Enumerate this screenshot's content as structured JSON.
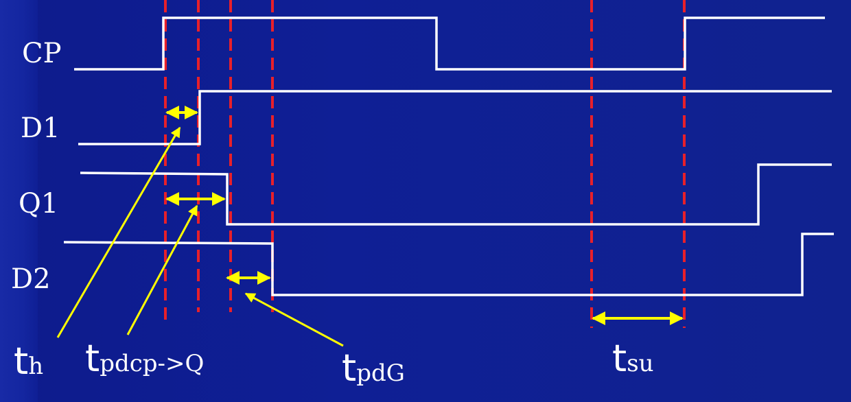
{
  "colors": {
    "background": "#0f1f95",
    "waveform": "#ffffff",
    "guide_lines": "#e8202a",
    "arrows": "#ffff00"
  },
  "signals": {
    "cp": "CP",
    "d1": "D1",
    "q1": "Q1",
    "d2": "D2"
  },
  "timing_labels": {
    "th": {
      "main": "t",
      "sub": "h"
    },
    "tpdcp": {
      "main": "t",
      "sub": "pdcp->Q"
    },
    "tpdg": {
      "main": "t",
      "sub": "pdG"
    },
    "tsu": {
      "main": "t",
      "sub": "su"
    }
  }
}
